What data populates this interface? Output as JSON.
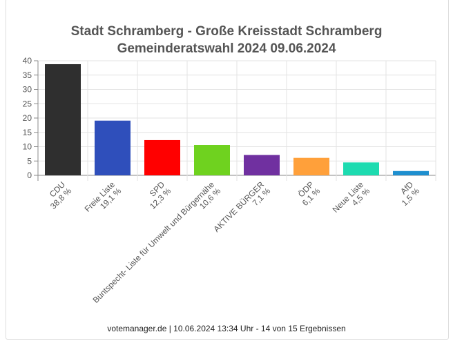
{
  "chart_data": {
    "type": "bar",
    "title": [
      "Stadt Schramberg - Große Kreisstadt Schramberg",
      "Gemeinderatswahl 2024 09.06.2024"
    ],
    "categories": [
      "CDU",
      "Freie Liste",
      "SPD",
      "Buntspecht- Liste für Umwelt und Bürgernähe",
      "AKTIVE BÜRGER",
      "ÖDP",
      "Neue Liste",
      "AfD"
    ],
    "value_labels": [
      "38,8 %",
      "19,1 %",
      "12,3 %",
      "10,6 %",
      "7,1 %",
      "6,1 %",
      "4,5 %",
      "1,5 %"
    ],
    "values": [
      38.8,
      19.1,
      12.3,
      10.6,
      7.1,
      6.1,
      4.5,
      1.5
    ],
    "colors": [
      "#2f2f2f",
      "#2f4fbb",
      "#ff0000",
      "#6fd21f",
      "#7030a0",
      "#ffa03a",
      "#1ddbb0",
      "#1e8fcf"
    ],
    "yticks": [
      0,
      5,
      10,
      15,
      20,
      25,
      30,
      35,
      40
    ],
    "ylim": [
      0,
      40
    ],
    "grid": true,
    "xlabel": "",
    "ylabel": ""
  },
  "footer": "votemanager.de | 10.06.2024 13:34 Uhr - 14 von 15 Ergebnissen"
}
